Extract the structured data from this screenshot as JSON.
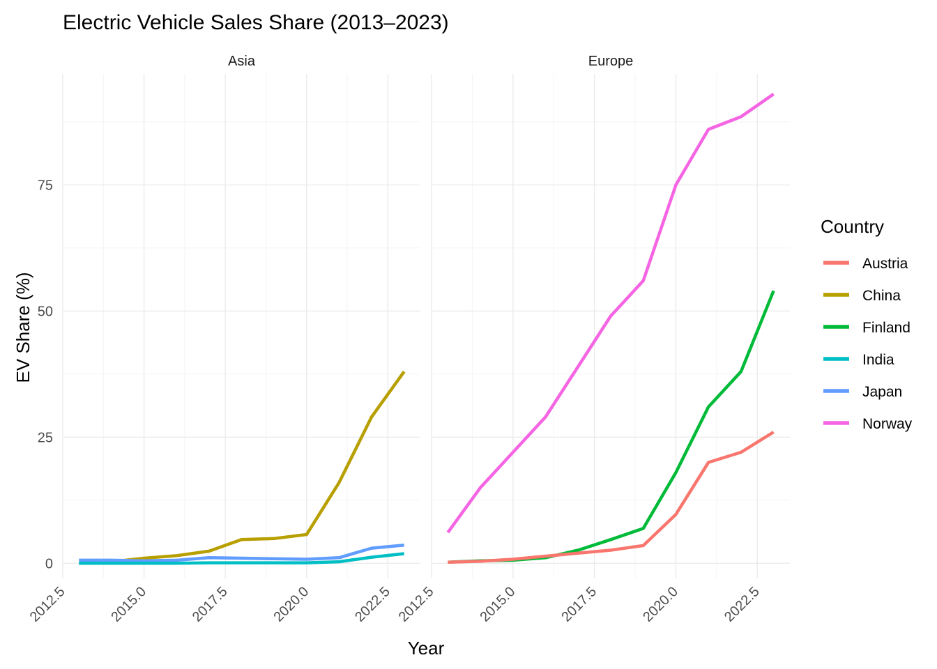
{
  "chart_data": {
    "type": "line",
    "title": "Electric Vehicle Sales Share (2013–2023)",
    "xlabel": "Year",
    "ylabel": "EV Share (%)",
    "xlim": [
      2012.5,
      2023.5
    ],
    "ylim": [
      -3,
      97
    ],
    "x_ticks": [
      2012.5,
      2015.0,
      2017.5,
      2020.0,
      2022.5
    ],
    "x_tick_labels": [
      "2012.5",
      "2015.0",
      "2017.5",
      "2020.0",
      "2022.5"
    ],
    "y_ticks": [
      0,
      25,
      50,
      75
    ],
    "y_tick_labels": [
      "0",
      "25",
      "50",
      "75"
    ],
    "grid": true,
    "legend": {
      "title": "Country",
      "position": "right",
      "entries": [
        {
          "name": "Austria",
          "color": "#F8766D"
        },
        {
          "name": "China",
          "color": "#B79F00"
        },
        {
          "name": "Finland",
          "color": "#00BA38"
        },
        {
          "name": "India",
          "color": "#00BFC4"
        },
        {
          "name": "Japan",
          "color": "#619CFF"
        },
        {
          "name": "Norway",
          "color": "#F564E3"
        }
      ]
    },
    "x": [
      2013,
      2014,
      2015,
      2016,
      2017,
      2018,
      2019,
      2020,
      2021,
      2022,
      2023
    ],
    "facets": [
      {
        "label": "Asia",
        "series": [
          {
            "name": "China",
            "color": "#B79F00",
            "values": [
              0.1,
              0.3,
              1.0,
              1.5,
              2.4,
              4.7,
              4.9,
              5.7,
              16.0,
              29.0,
              38.0
            ]
          },
          {
            "name": "Japan",
            "color": "#619CFF",
            "values": [
              0.6,
              0.6,
              0.5,
              0.6,
              1.1,
              1.0,
              0.9,
              0.8,
              1.1,
              3.0,
              3.6
            ]
          },
          {
            "name": "India",
            "color": "#00BFC4",
            "values": [
              0.0,
              0.0,
              0.0,
              0.0,
              0.1,
              0.1,
              0.1,
              0.1,
              0.3,
              1.2,
              1.9
            ]
          }
        ]
      },
      {
        "label": "Europe",
        "series": [
          {
            "name": "Norway",
            "color": "#F564E3",
            "values": [
              6.1,
              15.0,
              22.0,
              29.0,
              39.0,
              49.0,
              56.0,
              75.0,
              86.0,
              88.5,
              93.0
            ]
          },
          {
            "name": "Finland",
            "color": "#00BA38",
            "values": [
              0.2,
              0.5,
              0.6,
              1.1,
              2.6,
              4.7,
              6.9,
              18.0,
              31.0,
              38.0,
              54.0
            ]
          },
          {
            "name": "Austria",
            "color": "#F8766D",
            "values": [
              0.2,
              0.4,
              0.8,
              1.4,
              2.0,
              2.6,
              3.5,
              9.7,
              20.0,
              22.0,
              26.0
            ]
          }
        ]
      }
    ]
  }
}
